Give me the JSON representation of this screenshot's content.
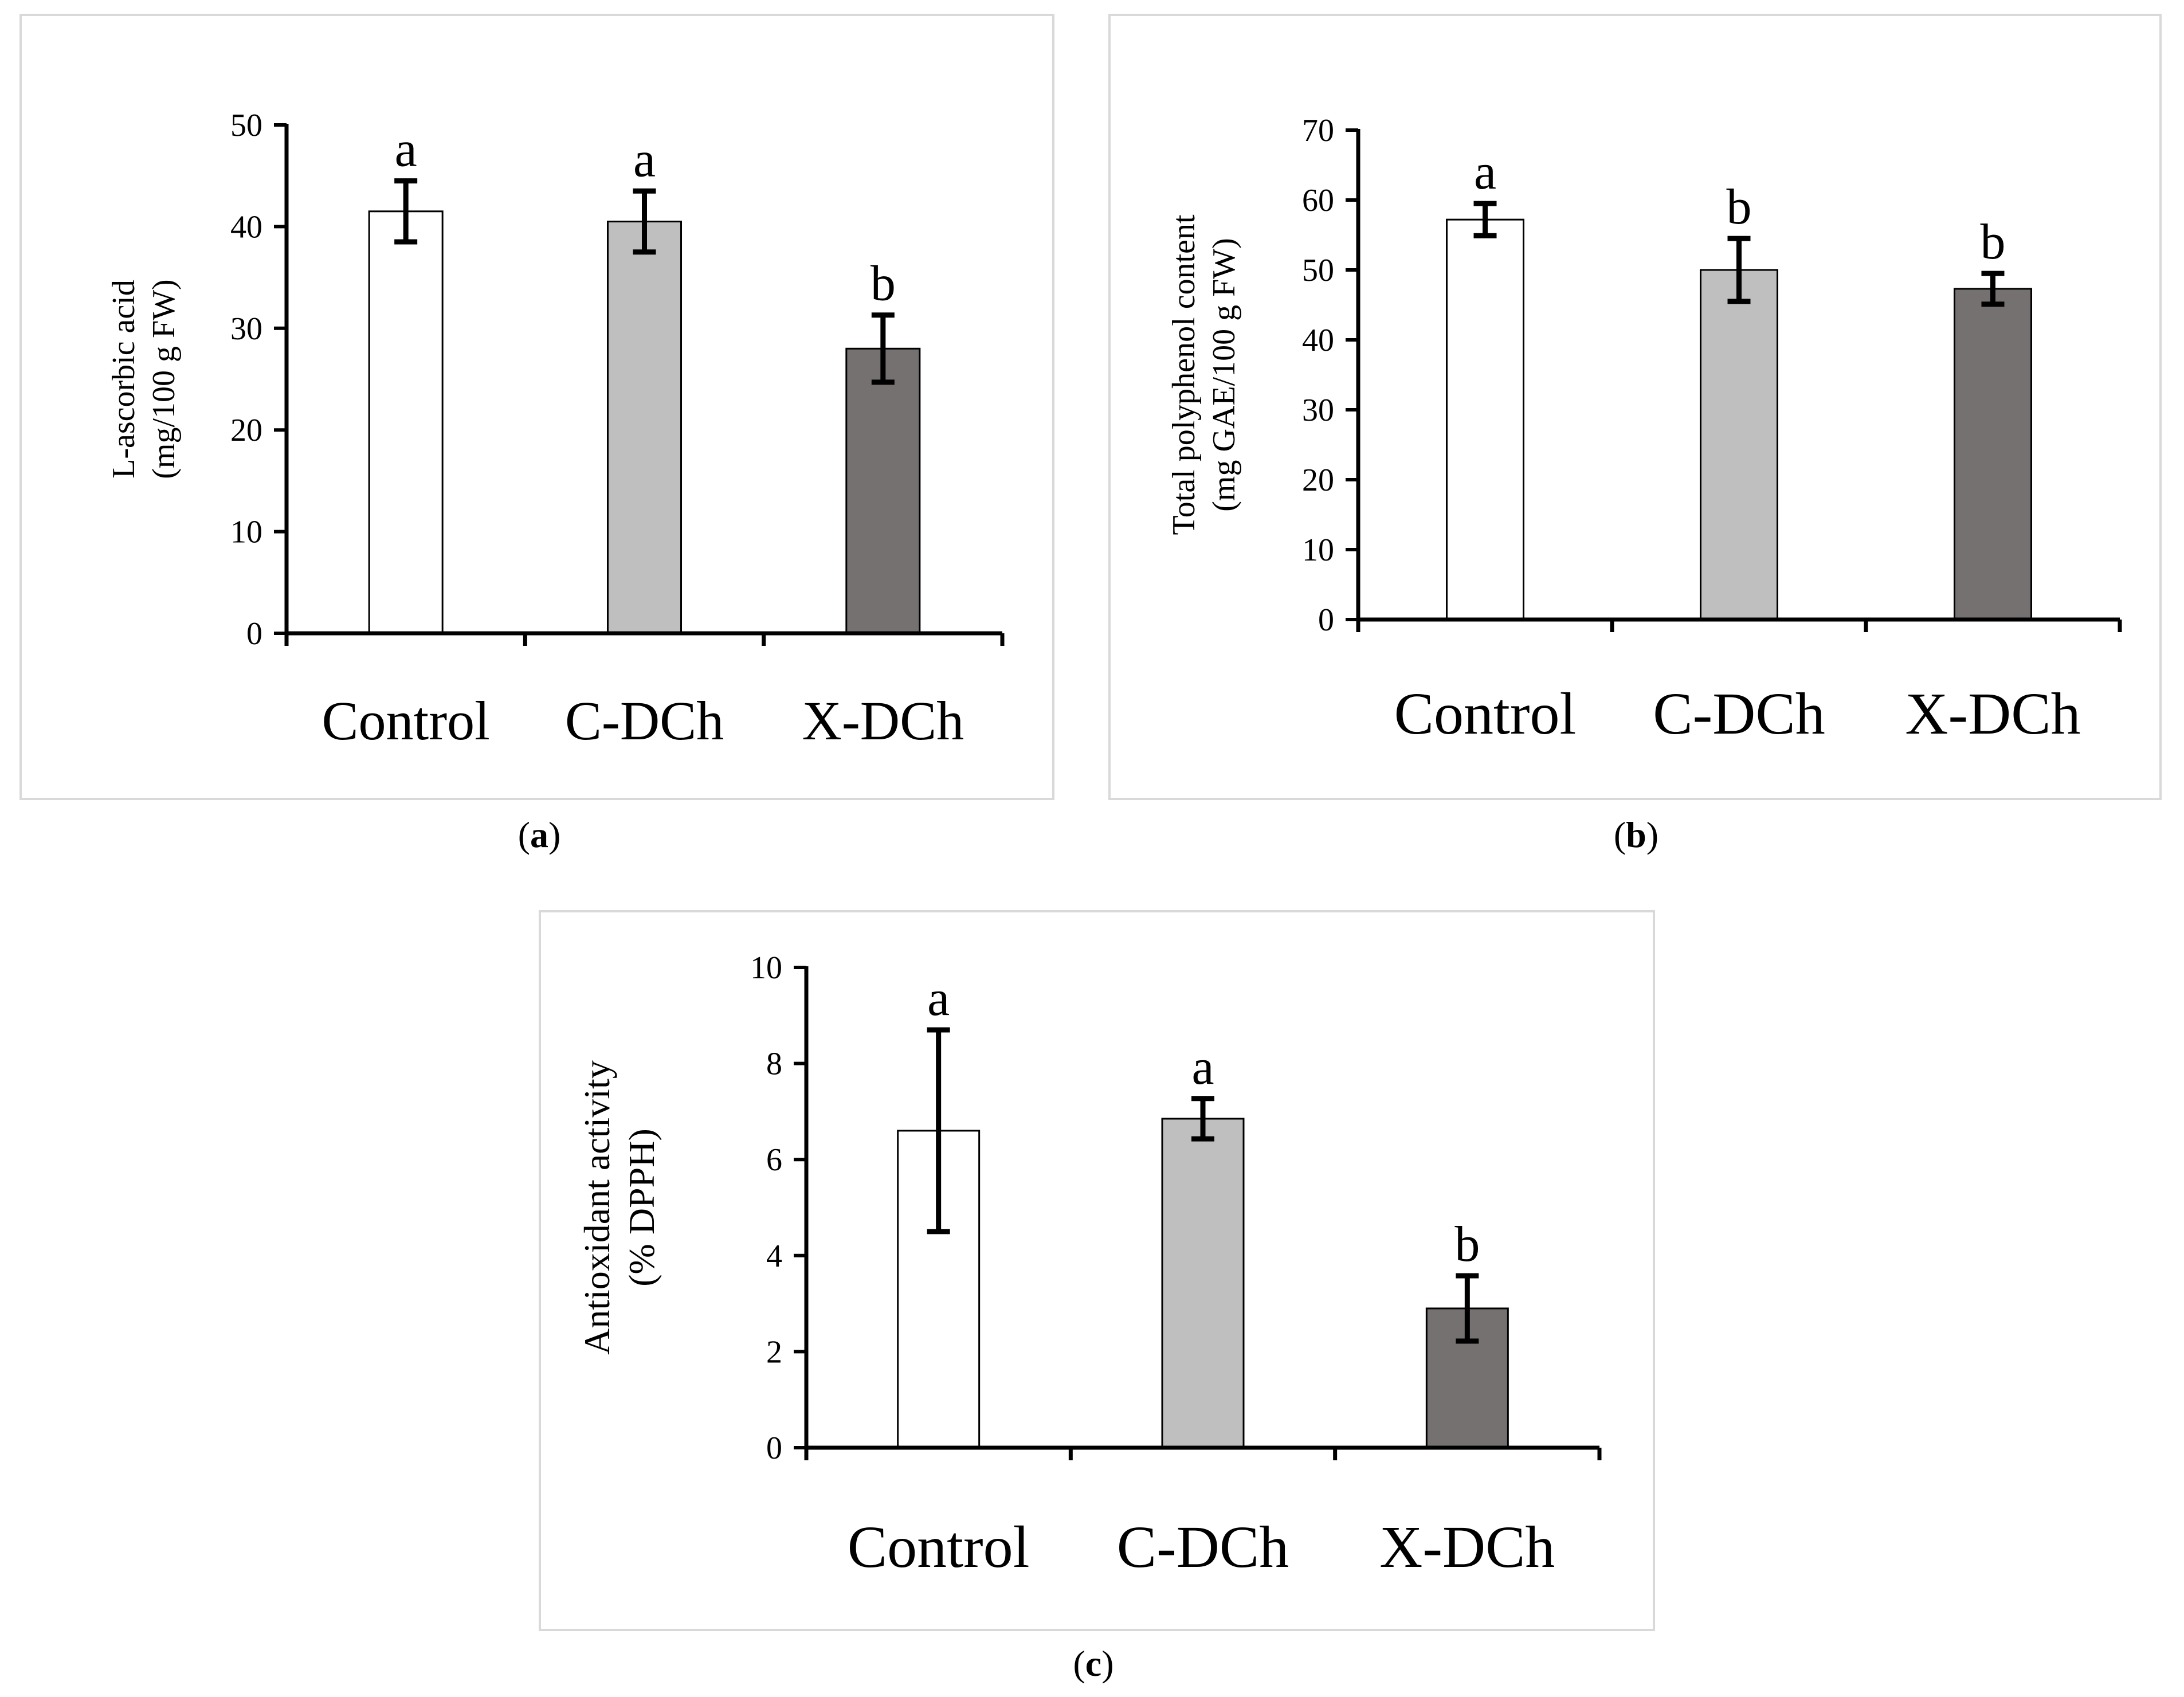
{
  "chart_data": [
    {
      "id": "a",
      "type": "bar",
      "panel_label": "a",
      "ylabel_lines": [
        "L-ascorbic acid",
        "(mg/100 g FW)"
      ],
      "categories": [
        "Control",
        "C-DCh",
        "X-DCh"
      ],
      "values": [
        41.5,
        40.5,
        28.0
      ],
      "errors": [
        3.0,
        3.0,
        3.3
      ],
      "significance": [
        "a",
        "a",
        "b"
      ],
      "ylim": [
        0,
        50
      ],
      "yticks": [
        0,
        10,
        20,
        30,
        40,
        50
      ],
      "bar_colors": [
        "#ffffff",
        "#bfbfbf",
        "#767171"
      ]
    },
    {
      "id": "b",
      "type": "bar",
      "panel_label": "b",
      "ylabel_lines": [
        "Total polyphenol content",
        "(mg GAE/100 g FW)"
      ],
      "categories": [
        "Control",
        "C-DCh",
        "X-DCh"
      ],
      "values": [
        57.2,
        50.0,
        47.3
      ],
      "errors": [
        2.3,
        4.5,
        2.2
      ],
      "significance": [
        "a",
        "b",
        "b"
      ],
      "ylim": [
        0,
        70
      ],
      "yticks": [
        0,
        10,
        20,
        30,
        40,
        50,
        60,
        70
      ],
      "bar_colors": [
        "#ffffff",
        "#bfbfbf",
        "#767171"
      ]
    },
    {
      "id": "c",
      "type": "bar",
      "panel_label": "c",
      "ylabel_lines": [
        "Antioxidant activity",
        "(% DPPH)"
      ],
      "categories": [
        "Control",
        "C-DCh",
        "X-DCh"
      ],
      "values": [
        6.6,
        6.85,
        2.9
      ],
      "errors": [
        2.1,
        0.42,
        0.68
      ],
      "significance": [
        "a",
        "a",
        "b"
      ],
      "ylim": [
        0,
        10
      ],
      "yticks": [
        0,
        2,
        4,
        6,
        8,
        10
      ],
      "bar_colors": [
        "#ffffff",
        "#bfbfbf",
        "#767171"
      ]
    }
  ]
}
